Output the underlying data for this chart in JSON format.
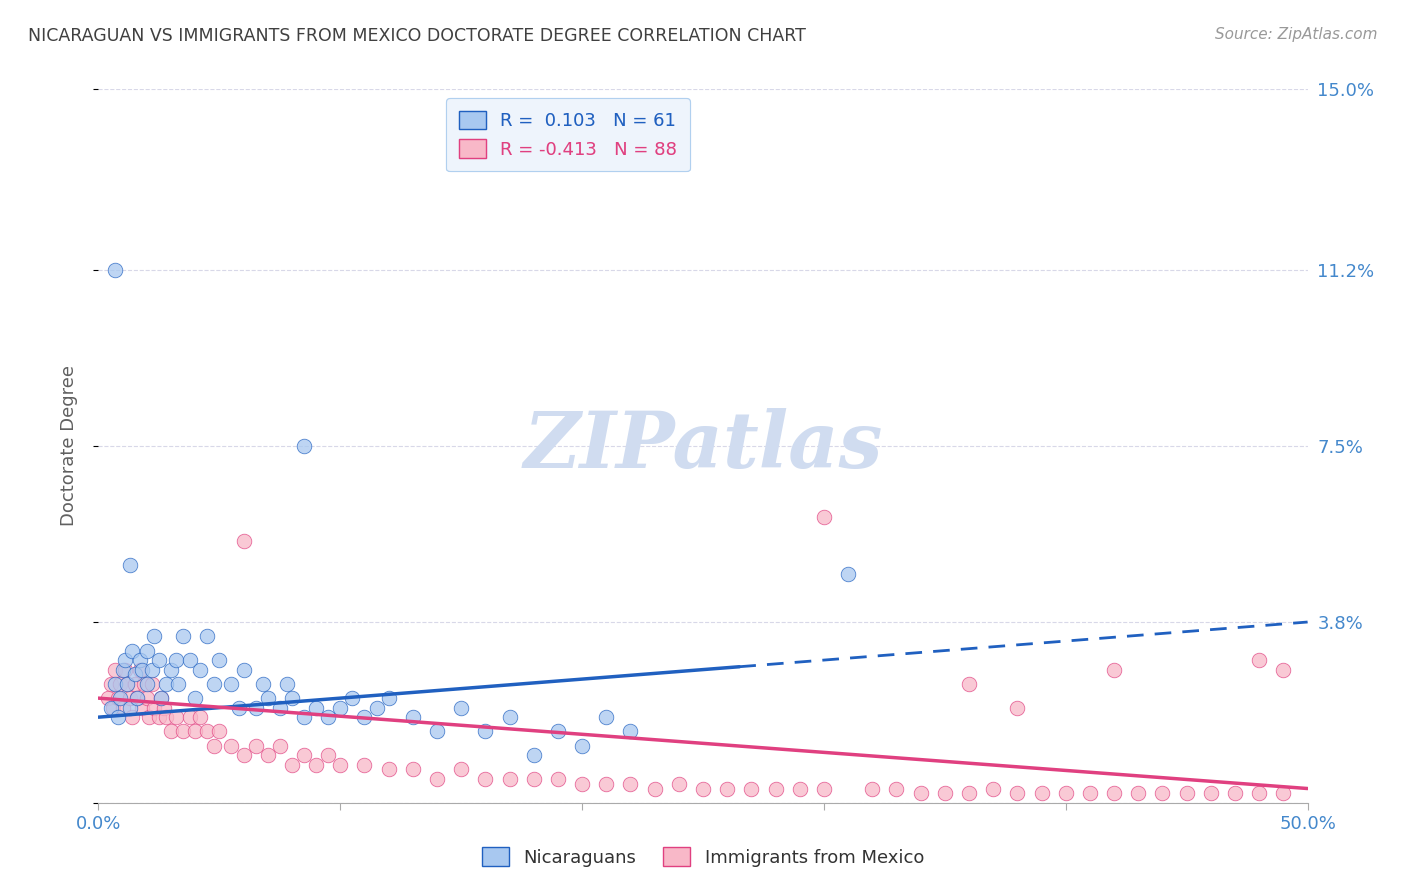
{
  "title": "NICARAGUAN VS IMMIGRANTS FROM MEXICO DOCTORATE DEGREE CORRELATION CHART",
  "source": "Source: ZipAtlas.com",
  "ylabel": "Doctorate Degree",
  "xlim": [
    0.0,
    0.5
  ],
  "ylim": [
    0.0,
    0.15
  ],
  "ytick_vals": [
    0.0,
    0.038,
    0.075,
    0.112,
    0.15
  ],
  "ytick_labels": [
    "",
    "3.8%",
    "7.5%",
    "11.2%",
    "15.0%"
  ],
  "xtick_vals": [
    0.0,
    0.1,
    0.2,
    0.3,
    0.4,
    0.5
  ],
  "xtick_labels": [
    "0.0%",
    "",
    "",
    "",
    "",
    "50.0%"
  ],
  "blue_R": 0.103,
  "blue_N": 61,
  "pink_R": -0.413,
  "pink_N": 88,
  "blue_color": "#A8C8F0",
  "pink_color": "#F8B8C8",
  "blue_line_color": "#2060C0",
  "pink_line_color": "#E04080",
  "legend_box_color": "#EEF4FC",
  "background_color": "#FFFFFF",
  "grid_color": "#D8D8E8",
  "title_color": "#404040",
  "axis_label_color": "#606060",
  "tick_label_color_blue": "#4488CC",
  "watermark_color": "#D0DCF0",
  "blue_line_solid_end": 0.265,
  "blue_line_start_y": 0.018,
  "blue_line_end_y": 0.038,
  "pink_line_start_y": 0.022,
  "pink_line_end_y": 0.003,
  "blue_scatter_x": [
    0.005,
    0.007,
    0.008,
    0.009,
    0.01,
    0.011,
    0.012,
    0.013,
    0.014,
    0.015,
    0.016,
    0.017,
    0.018,
    0.02,
    0.02,
    0.022,
    0.023,
    0.025,
    0.026,
    0.028,
    0.03,
    0.032,
    0.033,
    0.035,
    0.038,
    0.04,
    0.042,
    0.045,
    0.048,
    0.05,
    0.055,
    0.058,
    0.06,
    0.065,
    0.068,
    0.07,
    0.075,
    0.078,
    0.08,
    0.085,
    0.09,
    0.095,
    0.1,
    0.105,
    0.11,
    0.115,
    0.12,
    0.13,
    0.14,
    0.15,
    0.16,
    0.17,
    0.18,
    0.19,
    0.2,
    0.21,
    0.22,
    0.007,
    0.013,
    0.31,
    0.085
  ],
  "blue_scatter_y": [
    0.02,
    0.025,
    0.018,
    0.022,
    0.028,
    0.03,
    0.025,
    0.02,
    0.032,
    0.027,
    0.022,
    0.03,
    0.028,
    0.025,
    0.032,
    0.028,
    0.035,
    0.03,
    0.022,
    0.025,
    0.028,
    0.03,
    0.025,
    0.035,
    0.03,
    0.022,
    0.028,
    0.035,
    0.025,
    0.03,
    0.025,
    0.02,
    0.028,
    0.02,
    0.025,
    0.022,
    0.02,
    0.025,
    0.022,
    0.018,
    0.02,
    0.018,
    0.02,
    0.022,
    0.018,
    0.02,
    0.022,
    0.018,
    0.015,
    0.02,
    0.015,
    0.018,
    0.01,
    0.015,
    0.012,
    0.018,
    0.015,
    0.112,
    0.05,
    0.048,
    0.075
  ],
  "pink_scatter_x": [
    0.004,
    0.005,
    0.006,
    0.007,
    0.008,
    0.009,
    0.01,
    0.011,
    0.012,
    0.013,
    0.014,
    0.015,
    0.016,
    0.017,
    0.018,
    0.019,
    0.02,
    0.021,
    0.022,
    0.023,
    0.025,
    0.026,
    0.027,
    0.028,
    0.03,
    0.032,
    0.035,
    0.038,
    0.04,
    0.042,
    0.045,
    0.048,
    0.05,
    0.055,
    0.06,
    0.065,
    0.07,
    0.075,
    0.08,
    0.085,
    0.09,
    0.095,
    0.1,
    0.11,
    0.12,
    0.13,
    0.14,
    0.15,
    0.16,
    0.17,
    0.18,
    0.19,
    0.2,
    0.21,
    0.22,
    0.23,
    0.24,
    0.25,
    0.26,
    0.27,
    0.28,
    0.29,
    0.3,
    0.32,
    0.33,
    0.34,
    0.35,
    0.36,
    0.37,
    0.38,
    0.39,
    0.4,
    0.41,
    0.42,
    0.43,
    0.44,
    0.45,
    0.46,
    0.47,
    0.48,
    0.49,
    0.36,
    0.38,
    0.42,
    0.48,
    0.49,
    0.3,
    0.06
  ],
  "pink_scatter_y": [
    0.022,
    0.025,
    0.02,
    0.028,
    0.022,
    0.025,
    0.02,
    0.028,
    0.025,
    0.022,
    0.018,
    0.025,
    0.022,
    0.028,
    0.02,
    0.025,
    0.022,
    0.018,
    0.025,
    0.02,
    0.018,
    0.022,
    0.02,
    0.018,
    0.015,
    0.018,
    0.015,
    0.018,
    0.015,
    0.018,
    0.015,
    0.012,
    0.015,
    0.012,
    0.01,
    0.012,
    0.01,
    0.012,
    0.008,
    0.01,
    0.008,
    0.01,
    0.008,
    0.008,
    0.007,
    0.007,
    0.005,
    0.007,
    0.005,
    0.005,
    0.005,
    0.005,
    0.004,
    0.004,
    0.004,
    0.003,
    0.004,
    0.003,
    0.003,
    0.003,
    0.003,
    0.003,
    0.003,
    0.003,
    0.003,
    0.002,
    0.002,
    0.002,
    0.003,
    0.002,
    0.002,
    0.002,
    0.002,
    0.002,
    0.002,
    0.002,
    0.002,
    0.002,
    0.002,
    0.002,
    0.002,
    0.025,
    0.02,
    0.028,
    0.03,
    0.028,
    0.06,
    0.055
  ]
}
